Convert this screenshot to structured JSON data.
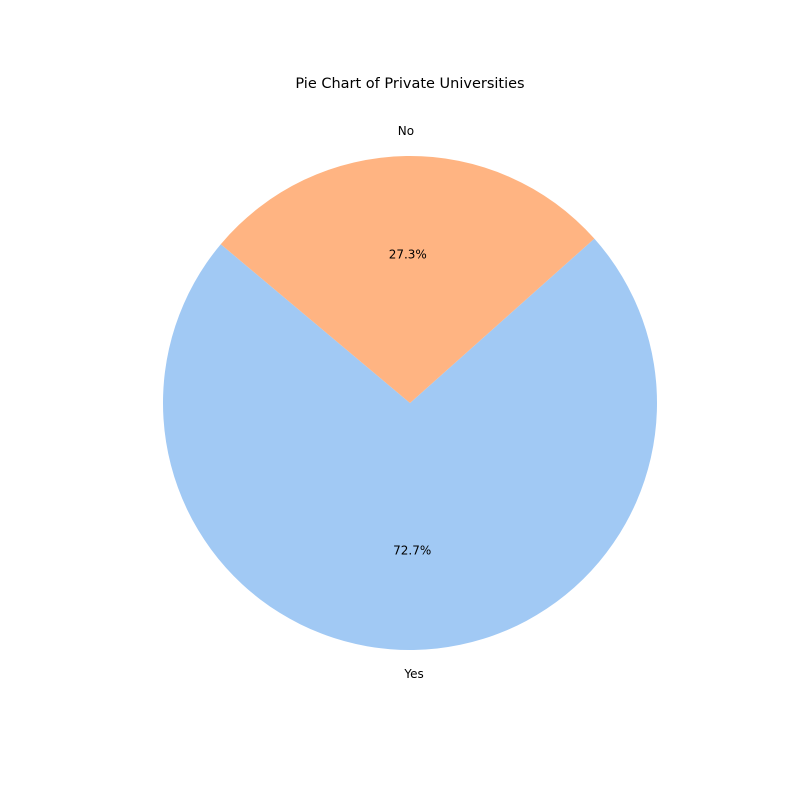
{
  "chart_data": {
    "type": "pie",
    "title": "Pie Chart of Private Universities",
    "categories": [
      "Yes",
      "No"
    ],
    "values": [
      72.7,
      27.3
    ],
    "percent_labels": [
      "72.7%",
      "27.3%"
    ],
    "colors": [
      "#a1c9f4",
      "#ffb482"
    ],
    "start_angle_deg": 140,
    "direction": "counterclockwise",
    "legend": "none",
    "grid": false
  }
}
